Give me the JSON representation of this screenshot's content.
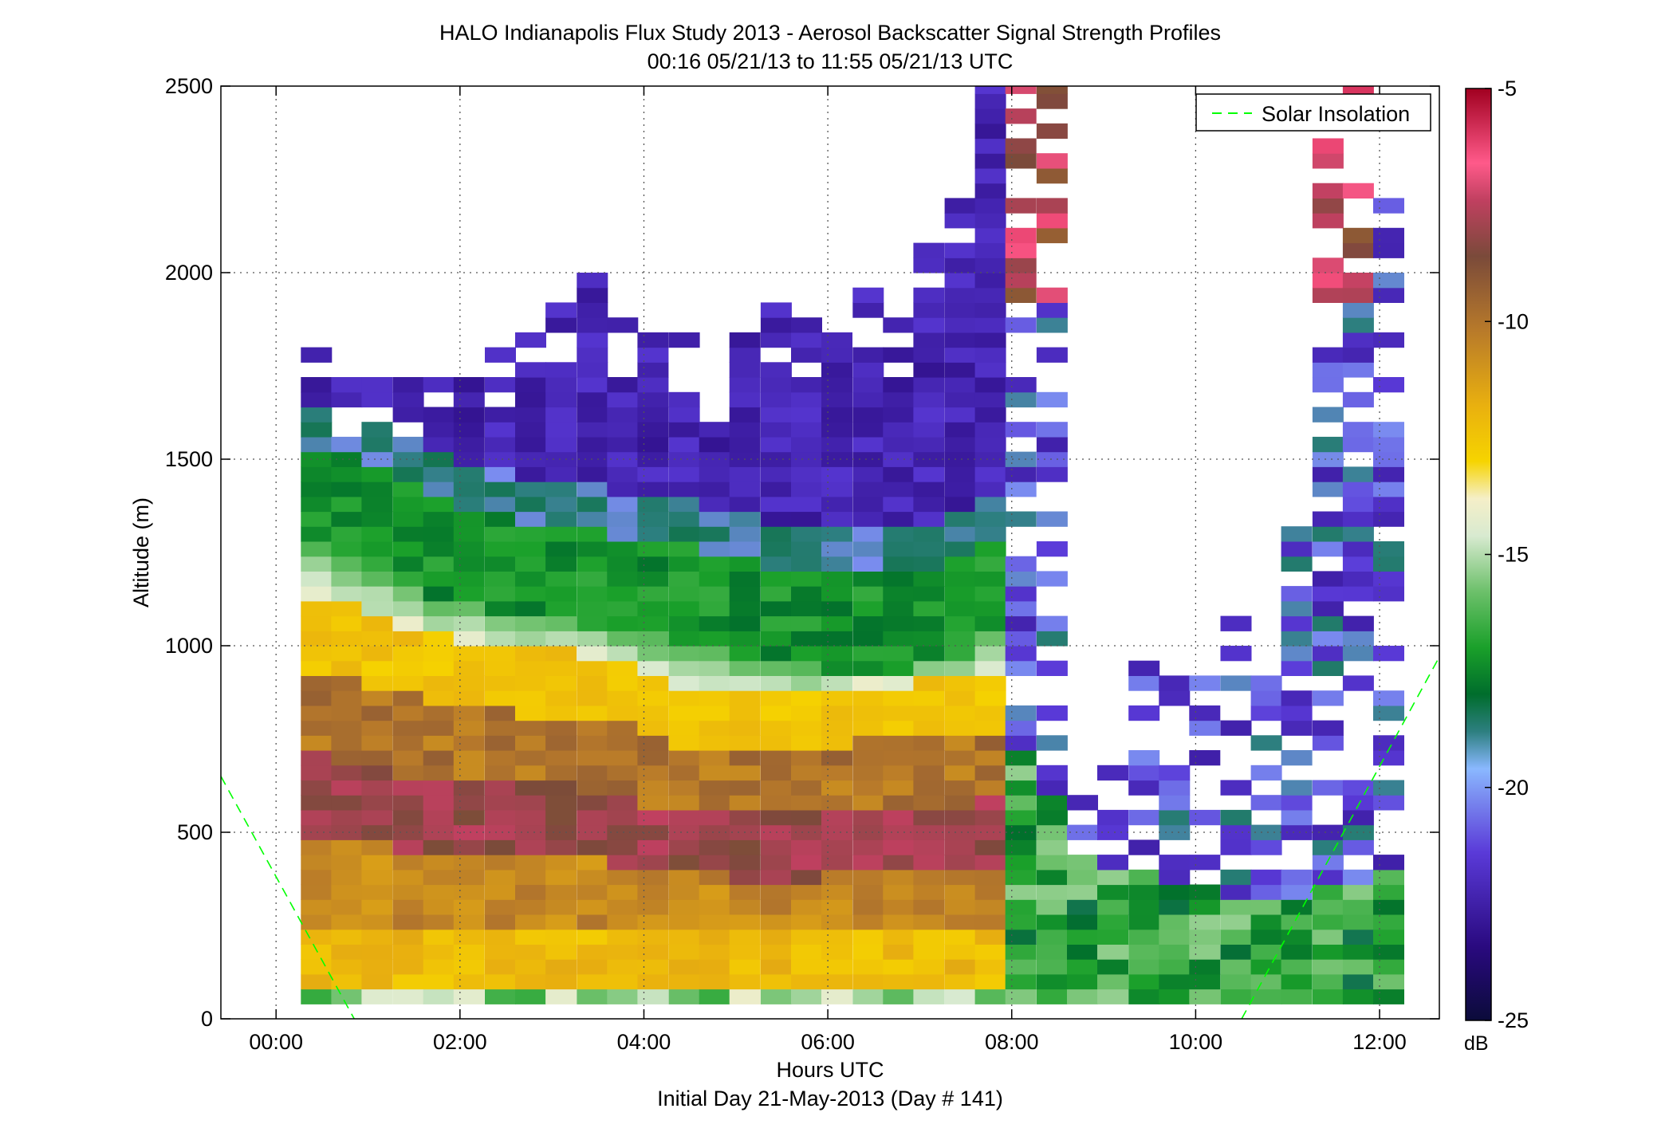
{
  "chart_data": {
    "type": "heatmap",
    "title": "HALO Indianapolis Flux Study 2013 - Aerosol Backscatter Signal Strength Profiles",
    "subtitle": "00:16 05/21/13 to 11:55 05/21/13  UTC",
    "xlabel": "Hours UTC",
    "xlabel2": "Initial Day 21-May-2013 (Day # 141)",
    "ylabel": "Altitude (m)",
    "x_unit": "hours UTC",
    "xlim": [
      -0.6,
      12.65
    ],
    "ylim": [
      0,
      2500
    ],
    "x_ticks": [
      {
        "v": 0,
        "label": "00:00"
      },
      {
        "v": 2,
        "label": "02:00"
      },
      {
        "v": 4,
        "label": "04:00"
      },
      {
        "v": 6,
        "label": "06:00"
      },
      {
        "v": 8,
        "label": "08:00"
      },
      {
        "v": 10,
        "label": "10:00"
      },
      {
        "v": 12,
        "label": "12:00"
      }
    ],
    "y_ticks": [
      {
        "v": 0,
        "label": "0"
      },
      {
        "v": 500,
        "label": "500"
      },
      {
        "v": 1000,
        "label": "1000"
      },
      {
        "v": 1500,
        "label": "1500"
      },
      {
        "v": 2000,
        "label": "2000"
      },
      {
        "v": 2500,
        "label": "2500"
      }
    ],
    "grid": true,
    "legend": {
      "position": "top-right",
      "entries": [
        {
          "name": "Solar Insolation",
          "style": "dashed",
          "color": "#00ff00"
        }
      ]
    },
    "colorbar": {
      "unit": "dB",
      "min": -25,
      "max": -5,
      "ticks": [
        -5,
        -10,
        -15,
        -20,
        -25
      ]
    },
    "time_bin_hours": 0.3333,
    "altitude_bin_m": 40,
    "start_time_hours": 0.2667,
    "solar_insolation_segments": [
      [
        [
          -0.6,
          650
        ],
        [
          0.85,
          0
        ]
      ],
      [
        [
          10.5,
          0
        ],
        [
          12.65,
          970
        ]
      ]
    ],
    "profiles": [
      {
        "t": 0.27,
        "top": 1850,
        "bl": 1260,
        "mix": 1120
      },
      {
        "t": 0.6,
        "top": 1720,
        "bl": 1230,
        "mix": 1090
      },
      {
        "t": 0.93,
        "top": 1720,
        "bl": 1200,
        "mix": 1060
      },
      {
        "t": 1.27,
        "top": 1720,
        "bl": 1150,
        "mix": 1030
      },
      {
        "t": 1.6,
        "top": 1760,
        "bl": 1120,
        "mix": 1010
      },
      {
        "t": 1.93,
        "top": 1720,
        "bl": 1100,
        "mix": 990
      },
      {
        "t": 2.27,
        "top": 1800,
        "bl": 1080,
        "mix": 980
      },
      {
        "t": 2.6,
        "top": 1920,
        "bl": 1060,
        "mix": 970
      },
      {
        "t": 2.93,
        "top": 1920,
        "bl": 1050,
        "mix": 970
      },
      {
        "t": 3.27,
        "top": 2000,
        "bl": 1040,
        "mix": 960
      },
      {
        "t": 3.6,
        "top": 1880,
        "bl": 1020,
        "mix": 950
      },
      {
        "t": 3.93,
        "top": 1840,
        "bl": 1010,
        "mix": 900
      },
      {
        "t": 4.27,
        "top": 1840,
        "bl": 990,
        "mix": 870
      },
      {
        "t": 4.6,
        "top": 1720,
        "bl": 980,
        "mix": 860
      },
      {
        "t": 4.93,
        "top": 1840,
        "bl": 960,
        "mix": 850
      },
      {
        "t": 5.27,
        "top": 1920,
        "bl": 940,
        "mix": 850
      },
      {
        "t": 5.6,
        "top": 1880,
        "bl": 930,
        "mix": 850
      },
      {
        "t": 5.93,
        "top": 1920,
        "bl": 920,
        "mix": 860
      },
      {
        "t": 6.27,
        "top": 1960,
        "bl": 910,
        "mix": 880
      },
      {
        "t": 6.6,
        "top": 1880,
        "bl": 920,
        "mix": 880
      },
      {
        "t": 6.93,
        "top": 2120,
        "bl": 940,
        "mix": 890
      },
      {
        "t": 7.27,
        "top": 2200,
        "bl": 960,
        "mix": 900
      },
      {
        "t": 7.6,
        "top": 2500,
        "bl": 1020,
        "mix": 910
      }
    ],
    "sparse_columns": [
      {
        "t": 7.93,
        "top": 2500,
        "bl": 700
      },
      {
        "t": 8.27,
        "top": 2500,
        "bl": 600
      },
      {
        "t": 8.6,
        "top": 600,
        "bl": 420
      },
      {
        "t": 8.93,
        "top": 760,
        "bl": 400
      },
      {
        "t": 9.27,
        "top": 980,
        "bl": 380
      },
      {
        "t": 9.6,
        "top": 900,
        "bl": 360
      },
      {
        "t": 9.93,
        "top": 900,
        "bl": 340
      },
      {
        "t": 10.27,
        "top": 1060,
        "bl": 320
      },
      {
        "t": 10.6,
        "top": 900,
        "bl": 300
      },
      {
        "t": 10.93,
        "top": 1340,
        "bl": 320
      },
      {
        "t": 11.27,
        "top": 2500,
        "bl": 340
      },
      {
        "t": 11.6,
        "top": 2500,
        "bl": 360
      },
      {
        "t": 11.93,
        "top": 2220,
        "bl": 400
      }
    ]
  }
}
